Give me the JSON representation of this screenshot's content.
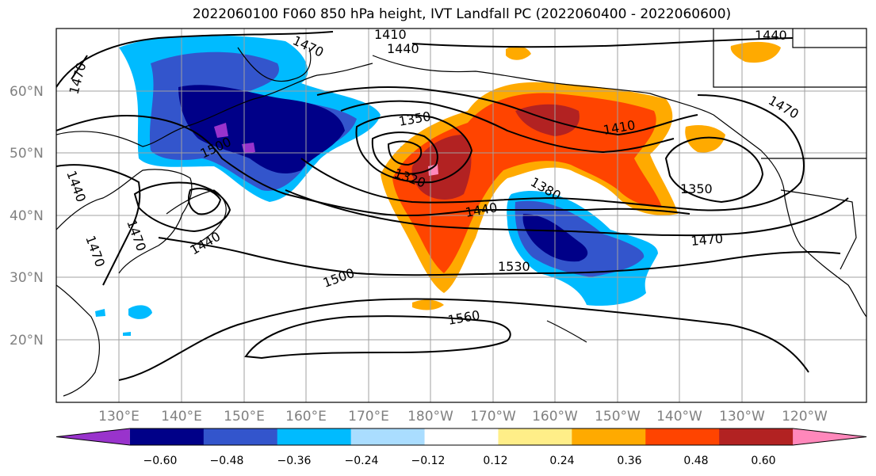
{
  "title": "2022060100 F060 850 hPa height, IVT Landfall PC (2022060400 - 2022060600)",
  "colors": {
    "contour": "#000000",
    "coast": "#000000",
    "grid": "#a0a0a0",
    "tick_label": "#808080"
  },
  "lat_labels": [
    "60°N",
    "50°N",
    "40°N",
    "30°N",
    "20°N"
  ],
  "lon_labels": [
    "130°E",
    "140°E",
    "150°E",
    "160°E",
    "170°E",
    "180°W",
    "170°W",
    "160°W",
    "150°W",
    "140°W",
    "130°W",
    "120°W"
  ],
  "contour_labels": [
    "1410",
    "1440",
    "1470",
    "1470",
    "1440",
    "1470",
    "1350",
    "1410",
    "1500",
    "1320",
    "1380",
    "1440",
    "1350",
    "1440",
    "1470",
    "1470",
    "1440",
    "1500",
    "1530",
    "1560",
    "1470",
    "1470"
  ],
  "colorbar": {
    "colors": [
      "#9933cc",
      "#000088",
      "#3355cc",
      "#00bbff",
      "#aaddff",
      "#ffffff",
      "#ffee88",
      "#ffaa00",
      "#ff4400",
      "#b22222",
      "#ff88bb"
    ],
    "tick_labels": [
      "−0.60",
      "−0.48",
      "−0.36",
      "−0.24",
      "−0.12",
      "0.12",
      "0.24",
      "0.36",
      "0.48",
      "0.60"
    ]
  }
}
